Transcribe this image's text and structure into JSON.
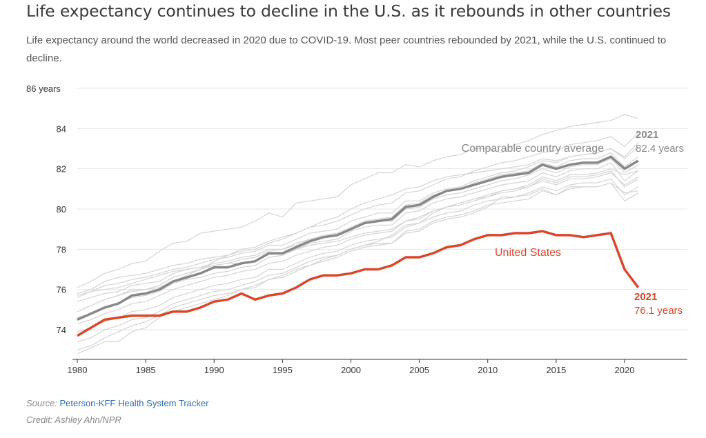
{
  "title": "Life expectancy continues to decline in the U.S. as it rebounds in other countries",
  "subtitle": "Life expectancy around the world decreased in 2020 due to COVID-19. Most peer countries rebounded by 2021, while the U.S. continued to decline.",
  "source": {
    "label": "Source:",
    "link_text": "Peterson-KFF Health System Tracker"
  },
  "credit": "Credit: Ashley Ahn/NPR",
  "colors": {
    "us": "#d9472b",
    "average": "#888888",
    "peers": "#d4d4d4",
    "grid": "#e6e6e6",
    "axis": "#333333",
    "link": "#2b6cb0"
  },
  "chart_data": {
    "type": "line",
    "xlim": [
      1980,
      2024
    ],
    "ylim": [
      72.5,
      86
    ],
    "x_ticks": [
      1980,
      1985,
      1990,
      1995,
      2000,
      2005,
      2010,
      2015,
      2020
    ],
    "y_ticks": [
      74,
      76,
      78,
      80,
      82,
      84,
      86
    ],
    "y_tick_labels": [
      "74",
      "76",
      "78",
      "80",
      "82",
      "84",
      "86 years"
    ],
    "grid": "horizontal",
    "x": [
      1980,
      1981,
      1982,
      1983,
      1984,
      1985,
      1986,
      1987,
      1988,
      1989,
      1990,
      1991,
      1992,
      1993,
      1994,
      1995,
      1996,
      1997,
      1998,
      1999,
      2000,
      2001,
      2002,
      2003,
      2004,
      2005,
      2006,
      2007,
      2008,
      2009,
      2010,
      2011,
      2012,
      2013,
      2014,
      2015,
      2016,
      2017,
      2018,
      2019,
      2020,
      2021
    ],
    "series": [
      {
        "name": "United States",
        "role": "us",
        "values": [
          73.7,
          74.1,
          74.5,
          74.6,
          74.7,
          74.7,
          74.7,
          74.9,
          74.9,
          75.1,
          75.4,
          75.5,
          75.8,
          75.5,
          75.7,
          75.8,
          76.1,
          76.5,
          76.7,
          76.7,
          76.8,
          77.0,
          77.0,
          77.2,
          77.6,
          77.6,
          77.8,
          78.1,
          78.2,
          78.5,
          78.7,
          78.7,
          78.8,
          78.8,
          78.9,
          78.7,
          78.7,
          78.6,
          78.7,
          78.8,
          77.0,
          76.1
        ]
      },
      {
        "name": "Comparable country average",
        "role": "average",
        "values": [
          74.5,
          74.8,
          75.1,
          75.3,
          75.7,
          75.8,
          76.0,
          76.4,
          76.6,
          76.8,
          77.1,
          77.1,
          77.3,
          77.4,
          77.8,
          77.8,
          78.1,
          78.4,
          78.6,
          78.7,
          79.0,
          79.3,
          79.4,
          79.5,
          80.1,
          80.2,
          80.6,
          80.9,
          81.0,
          81.2,
          81.4,
          81.6,
          81.7,
          81.8,
          82.2,
          82.0,
          82.2,
          82.3,
          82.3,
          82.6,
          82.0,
          82.4
        ]
      },
      {
        "role": "peer",
        "values": [
          76.1,
          76.4,
          76.8,
          77.0,
          77.3,
          77.4,
          77.9,
          78.3,
          78.4,
          78.8,
          78.9,
          79.0,
          79.1,
          79.4,
          79.8,
          79.6,
          80.3,
          80.4,
          80.5,
          80.6,
          81.2,
          81.5,
          81.8,
          81.8,
          82.2,
          82.1,
          82.4,
          82.6,
          82.7,
          83.0,
          83.0,
          82.8,
          83.2,
          83.4,
          83.7,
          83.9,
          84.1,
          84.2,
          84.3,
          84.4,
          84.7,
          84.5
        ]
      },
      {
        "role": "peer",
        "values": [
          75.8,
          76.0,
          76.4,
          76.6,
          76.7,
          76.8,
          77.0,
          77.2,
          77.3,
          77.5,
          77.6,
          77.7,
          78.0,
          78.1,
          78.4,
          78.6,
          78.8,
          79.1,
          79.2,
          79.4,
          79.7,
          80.0,
          80.2,
          80.3,
          80.8,
          80.9,
          81.2,
          81.5,
          81.6,
          81.9,
          82.1,
          82.3,
          82.4,
          82.6,
          82.8,
          82.9,
          83.2,
          83.3,
          83.4,
          83.6,
          83.1,
          83.8
        ]
      },
      {
        "role": "peer",
        "values": [
          75.6,
          75.9,
          76.2,
          76.3,
          76.5,
          76.6,
          76.8,
          77.0,
          77.1,
          77.3,
          77.5,
          77.6,
          77.8,
          77.9,
          78.2,
          78.2,
          78.5,
          78.8,
          78.9,
          79.0,
          79.4,
          79.6,
          79.8,
          79.8,
          80.4,
          80.4,
          80.8,
          81.0,
          81.1,
          81.4,
          81.6,
          81.8,
          81.9,
          82.1,
          82.4,
          82.3,
          82.6,
          82.7,
          82.8,
          83.0,
          82.5,
          83.1
        ]
      },
      {
        "role": "peer",
        "values": [
          75.4,
          75.6,
          75.8,
          75.9,
          76.2,
          76.3,
          76.4,
          76.8,
          77.0,
          77.1,
          77.3,
          77.4,
          77.6,
          77.7,
          78.0,
          78.0,
          78.3,
          78.5,
          78.7,
          78.8,
          79.1,
          79.4,
          79.5,
          79.6,
          80.2,
          80.3,
          80.7,
          80.9,
          81.0,
          81.3,
          81.5,
          81.7,
          81.8,
          81.9,
          82.3,
          82.1,
          82.4,
          82.5,
          82.5,
          82.8,
          82.1,
          82.6
        ]
      },
      {
        "role": "peer",
        "values": [
          74.9,
          75.2,
          75.5,
          75.7,
          76.0,
          76.0,
          76.2,
          76.6,
          76.8,
          77.0,
          77.2,
          77.3,
          77.5,
          77.6,
          77.9,
          78.0,
          78.2,
          78.5,
          78.6,
          78.7,
          79.0,
          79.3,
          79.4,
          79.4,
          80.0,
          80.1,
          80.5,
          80.7,
          80.8,
          81.0,
          81.2,
          81.4,
          81.5,
          81.7,
          82.0,
          81.8,
          82.1,
          82.2,
          82.2,
          82.5,
          81.8,
          82.2
        ]
      },
      {
        "role": "peer",
        "values": [
          74.6,
          74.8,
          75.1,
          75.3,
          75.6,
          75.7,
          75.9,
          76.3,
          76.5,
          76.6,
          76.8,
          76.9,
          77.1,
          77.2,
          77.6,
          77.7,
          78.0,
          78.3,
          78.4,
          78.5,
          78.9,
          79.1,
          79.2,
          79.2,
          79.8,
          79.9,
          80.3,
          80.5,
          80.6,
          80.8,
          81.0,
          81.2,
          81.3,
          81.4,
          81.8,
          81.6,
          81.9,
          82.0,
          82.0,
          82.3,
          81.4,
          81.9
        ]
      },
      {
        "role": "peer",
        "values": [
          74.3,
          74.5,
          74.8,
          75.0,
          75.3,
          75.4,
          75.7,
          76.0,
          76.2,
          76.4,
          76.6,
          76.7,
          76.9,
          77.0,
          77.3,
          77.4,
          77.7,
          77.9,
          78.1,
          78.2,
          78.5,
          78.7,
          78.8,
          78.9,
          79.4,
          79.5,
          79.9,
          80.1,
          80.3,
          80.5,
          80.7,
          80.9,
          81.0,
          81.1,
          81.5,
          81.3,
          81.6,
          81.6,
          81.7,
          81.9,
          81.1,
          81.5
        ]
      },
      {
        "role": "peer",
        "values": [
          73.9,
          74.1,
          74.4,
          74.6,
          74.9,
          75.0,
          75.2,
          75.6,
          75.8,
          76.0,
          76.2,
          76.3,
          76.5,
          76.6,
          77.0,
          77.0,
          77.3,
          77.6,
          77.8,
          77.9,
          78.2,
          78.4,
          78.5,
          78.6,
          79.1,
          79.3,
          79.6,
          79.8,
          79.9,
          80.2,
          80.4,
          80.5,
          80.6,
          80.8,
          81.1,
          80.9,
          81.2,
          81.3,
          81.3,
          81.5,
          80.7,
          81.1
        ]
      },
      {
        "role": "peer",
        "values": [
          73.4,
          73.6,
          74.0,
          74.2,
          74.5,
          74.6,
          74.9,
          75.3,
          75.5,
          75.7,
          75.9,
          76.0,
          76.2,
          76.4,
          76.7,
          76.8,
          77.1,
          77.4,
          77.6,
          77.7,
          78.0,
          78.2,
          78.3,
          78.3,
          78.9,
          79.0,
          79.4,
          79.6,
          79.7,
          79.9,
          80.2,
          80.3,
          80.4,
          80.5,
          80.9,
          80.7,
          81.0,
          81.1,
          81.1,
          81.3,
          80.4,
          80.8
        ]
      },
      {
        "role": "peer",
        "values": [
          73.0,
          73.2,
          73.6,
          73.9,
          74.2,
          74.4,
          74.7,
          75.1,
          75.3,
          75.5,
          75.7,
          75.8,
          76.0,
          76.1,
          76.5,
          76.6,
          76.9,
          77.2,
          77.4,
          77.6,
          77.9,
          78.1,
          78.2,
          78.3,
          78.8,
          78.9,
          79.3,
          79.5,
          79.6,
          79.8,
          80.1,
          80.6,
          80.6,
          80.7,
          81.0,
          80.7,
          81.1,
          81.1,
          81.1,
          81.3,
          80.8,
          80.9
        ]
      },
      {
        "role": "peer",
        "values": [
          72.8,
          73.1,
          73.4,
          73.4,
          73.9,
          74.1,
          74.6,
          74.9,
          75.1,
          75.3,
          75.5,
          75.7,
          76.0,
          76.2,
          76.5,
          76.7,
          77.0,
          77.2,
          77.5,
          77.7,
          78.0,
          78.2,
          78.4,
          78.7,
          79.2,
          79.3,
          79.8,
          80.1,
          80.3,
          80.5,
          80.6,
          80.9,
          81.0,
          81.2,
          81.6,
          81.4,
          81.7,
          81.7,
          81.8,
          82.0,
          81.7,
          81.9
        ]
      },
      {
        "role": "peer",
        "values": [
          75.7,
          75.9,
          76.0,
          76.1,
          76.3,
          76.5,
          76.7,
          76.9,
          77.0,
          77.1,
          77.2,
          77.3,
          77.3,
          77.4,
          77.8,
          77.8,
          78.0,
          78.2,
          78.3,
          78.4,
          78.6,
          78.8,
          78.9,
          79.0,
          79.4,
          79.6,
          79.9,
          80.1,
          80.2,
          80.4,
          80.6,
          80.8,
          80.9,
          81.1,
          81.4,
          81.2,
          81.5,
          81.5,
          81.6,
          81.8,
          81.2,
          81.6
        ]
      },
      {
        "role": "peer",
        "values": [
          74.9,
          75.2,
          75.5,
          75.7,
          75.9,
          76.0,
          76.1,
          76.4,
          76.7,
          77.0,
          77.4,
          77.7,
          77.9,
          78.0,
          78.3,
          78.5,
          78.8,
          79.1,
          79.4,
          79.6,
          80.0,
          80.3,
          80.5,
          80.7,
          81.0,
          81.1,
          81.4,
          81.6,
          81.7,
          81.8,
          81.9,
          82.0,
          82.1,
          82.2,
          82.5,
          82.4,
          82.6,
          82.7,
          82.8,
          83.0,
          82.6,
          83.3
        ]
      }
    ],
    "annotations": [
      {
        "text": "Comparable country average",
        "color": "#888888"
      },
      {
        "text": "United States",
        "color": "#d9472b"
      },
      {
        "text": "2021",
        "subtext": "82.4 years",
        "color": "#888888"
      },
      {
        "text": "2021",
        "subtext": "76.1 years",
        "color": "#d9472b"
      }
    ]
  }
}
